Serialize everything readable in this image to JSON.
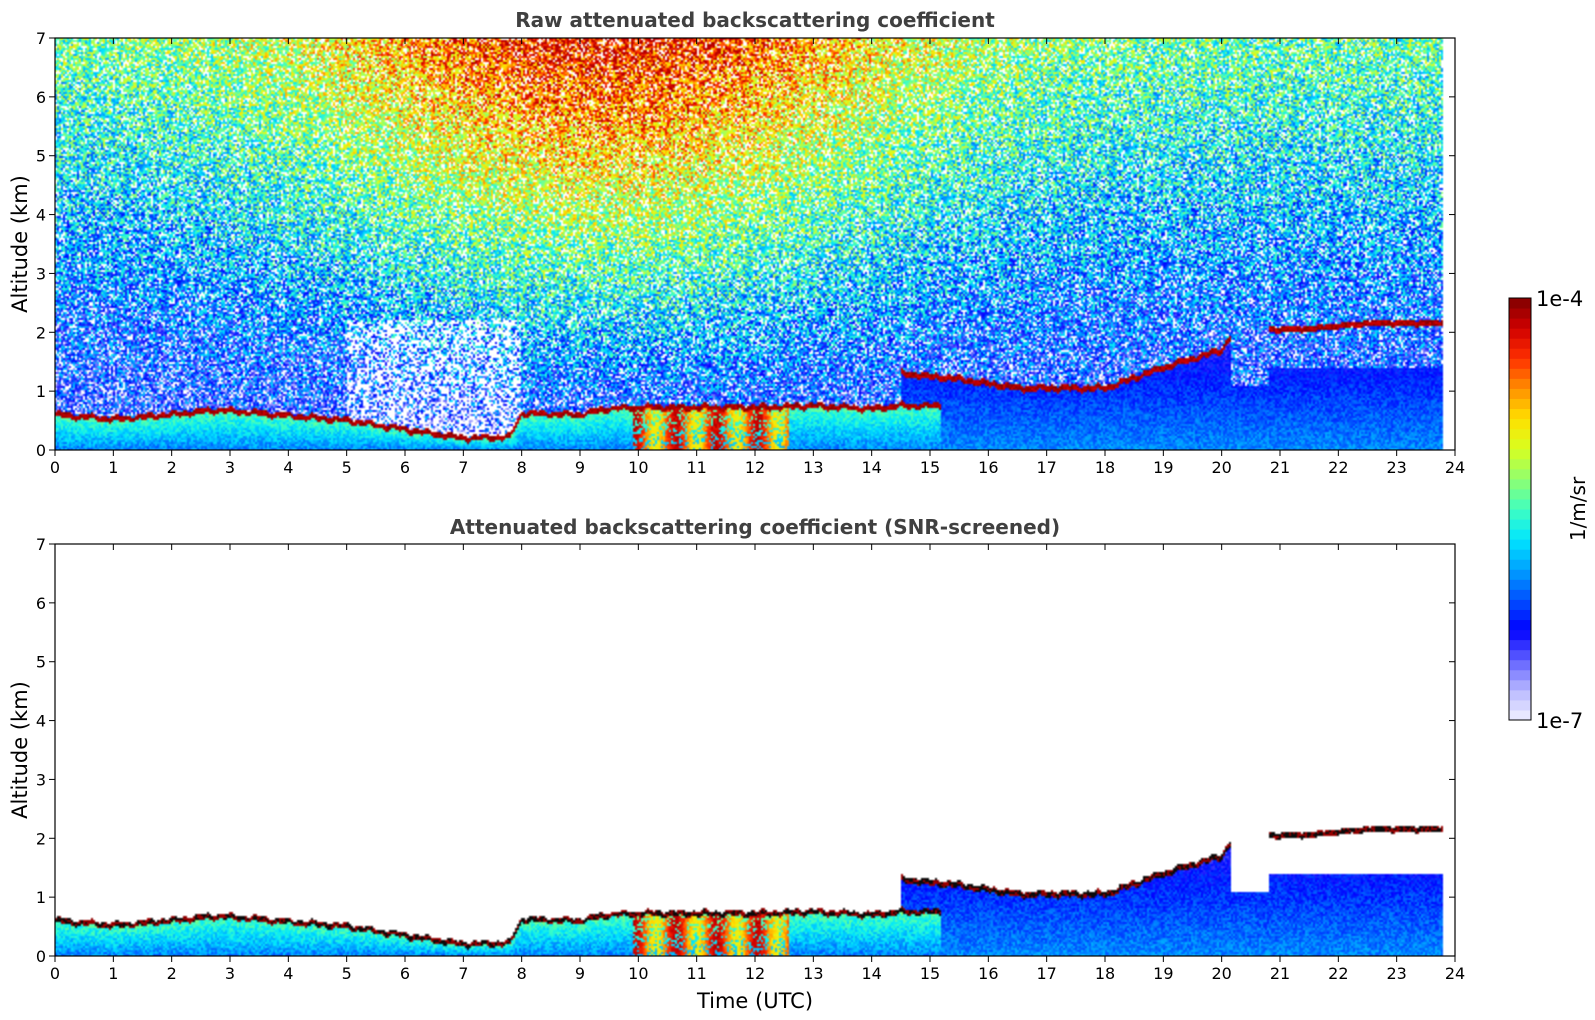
{
  "chart_data": [
    {
      "type": "heatmap",
      "title": "Raw attenuated backscattering coefficient",
      "xlabel": "",
      "ylabel": "Altitude (km)",
      "xlim": [
        0,
        24
      ],
      "ylim": [
        0,
        7
      ],
      "x_ticks": [
        "0",
        "1",
        "2",
        "3",
        "4",
        "5",
        "6",
        "7",
        "8",
        "9",
        "10",
        "11",
        "12",
        "13",
        "14",
        "15",
        "16",
        "17",
        "18",
        "19",
        "20",
        "21",
        "22",
        "23",
        "24"
      ],
      "y_ticks": [
        "0",
        "1",
        "2",
        "3",
        "4",
        "5",
        "6",
        "7"
      ],
      "data_extent_x": [
        0,
        23.8
      ],
      "grid": false,
      "screened": false,
      "layer_top_km": [
        [
          0,
          0.6
        ],
        [
          1,
          0.52
        ],
        [
          2,
          0.6
        ],
        [
          2.8,
          0.68
        ],
        [
          4,
          0.58
        ],
        [
          5,
          0.5
        ],
        [
          6,
          0.35
        ],
        [
          7,
          0.2
        ],
        [
          7.8,
          0.22
        ],
        [
          8,
          0.62
        ],
        [
          9,
          0.6
        ],
        [
          9.5,
          0.7
        ],
        [
          10,
          0.72
        ],
        [
          11,
          0.72
        ],
        [
          12,
          0.72
        ],
        [
          13,
          0.75
        ],
        [
          14,
          0.7
        ],
        [
          14.5,
          0.75
        ],
        [
          15,
          0.75
        ]
      ],
      "elevated_layer_km": [
        [
          14.5,
          1.3
        ],
        [
          15.5,
          1.2
        ],
        [
          16.5,
          1.05
        ],
        [
          17.5,
          1.05
        ],
        [
          18,
          1.05
        ],
        [
          19,
          1.4
        ],
        [
          20,
          1.7
        ],
        [
          20.15,
          1.9
        ]
      ],
      "upper_layer_km": [
        [
          20.8,
          2.05
        ],
        [
          21.5,
          2.05
        ],
        [
          22.5,
          2.15
        ],
        [
          23.8,
          2.15
        ]
      ]
    },
    {
      "type": "heatmap",
      "title": "Attenuated backscattering coefficient (SNR-screened)",
      "xlabel": "Time (UTC)",
      "ylabel": "Altitude (km)",
      "xlim": [
        0,
        24
      ],
      "ylim": [
        0,
        7
      ],
      "x_ticks": [
        "0",
        "1",
        "2",
        "3",
        "4",
        "5",
        "6",
        "7",
        "8",
        "9",
        "10",
        "11",
        "12",
        "13",
        "14",
        "15",
        "16",
        "17",
        "18",
        "19",
        "20",
        "21",
        "22",
        "23",
        "24"
      ],
      "y_ticks": [
        "0",
        "1",
        "2",
        "3",
        "4",
        "5",
        "6",
        "7"
      ],
      "data_extent_x": [
        0,
        23.8
      ],
      "grid": false,
      "screened": true
    }
  ],
  "colorbar": {
    "max_label": "1e-4",
    "min_label": "1e-7",
    "label": "1/m/sr",
    "scale": "log",
    "range": [
      1e-07,
      0.0001
    ],
    "colormap": "jet",
    "colors": [
      "#f2f2ff",
      "#b8b8ff",
      "#6060ff",
      "#0000ff",
      "#0050ff",
      "#00a0ff",
      "#00e6ff",
      "#40ffc0",
      "#90ff70",
      "#d8ff20",
      "#ffe000",
      "#ff9000",
      "#ff3000",
      "#d00000",
      "#800000"
    ]
  }
}
